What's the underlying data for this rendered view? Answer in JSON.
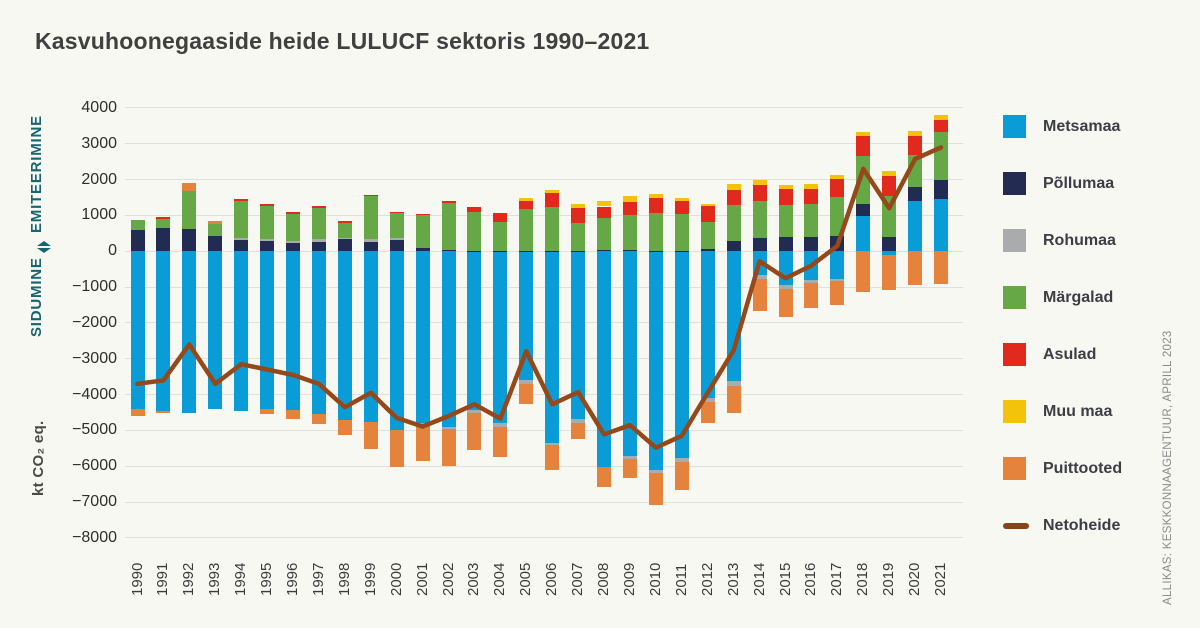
{
  "title": "Kasvuhoonegaaside heide LULUCF sektoris 1990–2021",
  "source": "ALLIKAS: KESKKONNAAGENTUUR, APRILL 2023",
  "y_axis": {
    "label_top": "EMITEERIMINE",
    "label_bottom": "SIDUMINE",
    "unit": "kt CO₂ eq.",
    "ticks": [
      {
        "label": "4000",
        "value": 4000
      },
      {
        "label": "3000",
        "value": 3000
      },
      {
        "label": "2000",
        "value": 2000
      },
      {
        "label": "1000",
        "value": 1000
      },
      {
        "label": "0",
        "value": 0
      },
      {
        "label": "−1000",
        "value": -1000
      },
      {
        "label": "−2000",
        "value": -2000
      },
      {
        "label": "−3000",
        "value": -3000
      },
      {
        "label": "−4000",
        "value": -4000
      },
      {
        "label": "−5000",
        "value": -5000
      },
      {
        "label": "−6000",
        "value": -6000
      },
      {
        "label": "−7000",
        "value": -7000
      },
      {
        "label": "−8000",
        "value": -8000
      }
    ]
  },
  "legend": [
    {
      "id": "metsamaa",
      "label": "Metsamaa",
      "color": "#0a9cd7",
      "swatch": "square"
    },
    {
      "id": "pollumaa",
      "label": "Põllumaa",
      "color": "#222c52",
      "swatch": "square"
    },
    {
      "id": "rohumaa",
      "label": "Rohumaa",
      "color": "#a9abad",
      "swatch": "square"
    },
    {
      "id": "margalad",
      "label": "Märgalad",
      "color": "#66a845",
      "swatch": "square"
    },
    {
      "id": "asulad",
      "label": "Asulad",
      "color": "#e12a1e",
      "swatch": "square"
    },
    {
      "id": "muu-maa",
      "label": "Muu maa",
      "color": "#f3c30c",
      "swatch": "square"
    },
    {
      "id": "puittooted",
      "label": "Puittooted",
      "color": "#e5823c",
      "swatch": "square"
    },
    {
      "id": "netoheide",
      "label": "Netoheide",
      "color": "#8a4312",
      "swatch": "line"
    }
  ],
  "chart_data": {
    "type": "bar",
    "subtype": "stacked-bar-with-line",
    "unit": "kt CO2 eq.",
    "ylabel": "kt CO₂ eq.",
    "ylim": [
      -8000,
      4000
    ],
    "grid": true,
    "legend_position": "right",
    "categories": [
      "1990",
      "1991",
      "1992",
      "1993",
      "1994",
      "1995",
      "1996",
      "1997",
      "1998",
      "1999",
      "2000",
      "2001",
      "2002",
      "2003",
      "2004",
      "2005",
      "2006",
      "2007",
      "2008",
      "2009",
      "2010",
      "2011",
      "2012",
      "2013",
      "2014",
      "2015",
      "2016",
      "2017",
      "2018",
      "2019",
      "2020",
      "2021"
    ],
    "series": [
      {
        "name": "Metsamaa",
        "type": "bar",
        "color": "#0a9cd7",
        "values": [
          -4400,
          -4450,
          -4500,
          -4400,
          -4470,
          -4400,
          -4420,
          -4540,
          -4700,
          -4750,
          -4980,
          -4800,
          -4900,
          -4440,
          -4780,
          -3600,
          -5340,
          -4690,
          -6020,
          -5710,
          -6110,
          -5780,
          -4090,
          -3630,
          -660,
          -930,
          -800,
          -760,
          990,
          -90,
          1390,
          1450
        ]
      },
      {
        "name": "Põllumaa",
        "type": "bar",
        "color": "#222c52",
        "values": [
          600,
          650,
          610,
          430,
          310,
          285,
          230,
          265,
          330,
          265,
          310,
          90,
          30,
          20,
          20,
          20,
          20,
          20,
          40,
          40,
          20,
          20,
          70,
          300,
          370,
          400,
          390,
          440,
          340,
          400,
          400,
          550
        ]
      },
      {
        "name": "Rohumaa",
        "type": "bar",
        "color": "#a9abad",
        "values": [
          0,
          0,
          0,
          0,
          50,
          65,
          65,
          65,
          45,
          65,
          65,
          -60,
          -60,
          -60,
          -120,
          -100,
          -60,
          -90,
          0,
          -90,
          -90,
          -110,
          -120,
          -140,
          -120,
          -120,
          -90,
          -60,
          0,
          0,
          0,
          0
        ]
      },
      {
        "name": "Märgalad",
        "type": "bar",
        "color": "#66a845",
        "values": [
          280,
          240,
          1085,
          345,
          1045,
          915,
          745,
          885,
          420,
          1210,
          680,
          910,
          1315,
          1075,
          810,
          1165,
          1210,
          780,
          885,
          980,
          1045,
          1025,
          740,
          1000,
          1020,
          900,
          930,
          1080,
          1330,
          1145,
          905,
          1340
        ]
      },
      {
        "name": "Asulad",
        "type": "bar",
        "color": "#e12a1e",
        "values": [
          0,
          55,
          0,
          0,
          55,
          55,
          55,
          55,
          55,
          45,
          55,
          50,
          65,
          155,
          250,
          230,
          390,
          400,
          325,
          345,
          420,
          365,
          460,
          420,
          470,
          430,
          420,
          500,
          555,
          555,
          530,
          330
        ]
      },
      {
        "name": "Muu maa",
        "type": "bar",
        "color": "#f3c30c",
        "values": [
          0,
          0,
          0,
          0,
          0,
          0,
          0,
          0,
          0,
          0,
          0,
          0,
          0,
          0,
          0,
          70,
          95,
          110,
          160,
          185,
          110,
          75,
          60,
          155,
          140,
          130,
          135,
          100,
          125,
          130,
          145,
          140
        ]
      },
      {
        "name": "Puittooted",
        "type": "bar",
        "color": "#e5823c",
        "values": [
          -190,
          -70,
          225,
          65,
          0,
          -150,
          -250,
          -290,
          -430,
          -770,
          -1030,
          -1000,
          -1030,
          -1050,
          -840,
          -570,
          -710,
          -470,
          -570,
          -530,
          -880,
          -780,
          -580,
          -740,
          -900,
          -770,
          -700,
          -690,
          -1130,
          -980,
          -930,
          -900
        ]
      },
      {
        "name": "Netoheide",
        "type": "line",
        "color": "#95491a",
        "values": [
          -3700,
          -3600,
          -2600,
          -3700,
          -3150,
          -3300,
          -3450,
          -3700,
          -4350,
          -3950,
          -4650,
          -4890,
          -4600,
          -4270,
          -4670,
          -2790,
          -4270,
          -3930,
          -5110,
          -4850,
          -5480,
          -5150,
          -3950,
          -2760,
          -280,
          -750,
          -400,
          150,
          2300,
          1200,
          2580,
          2900
        ]
      }
    ]
  }
}
